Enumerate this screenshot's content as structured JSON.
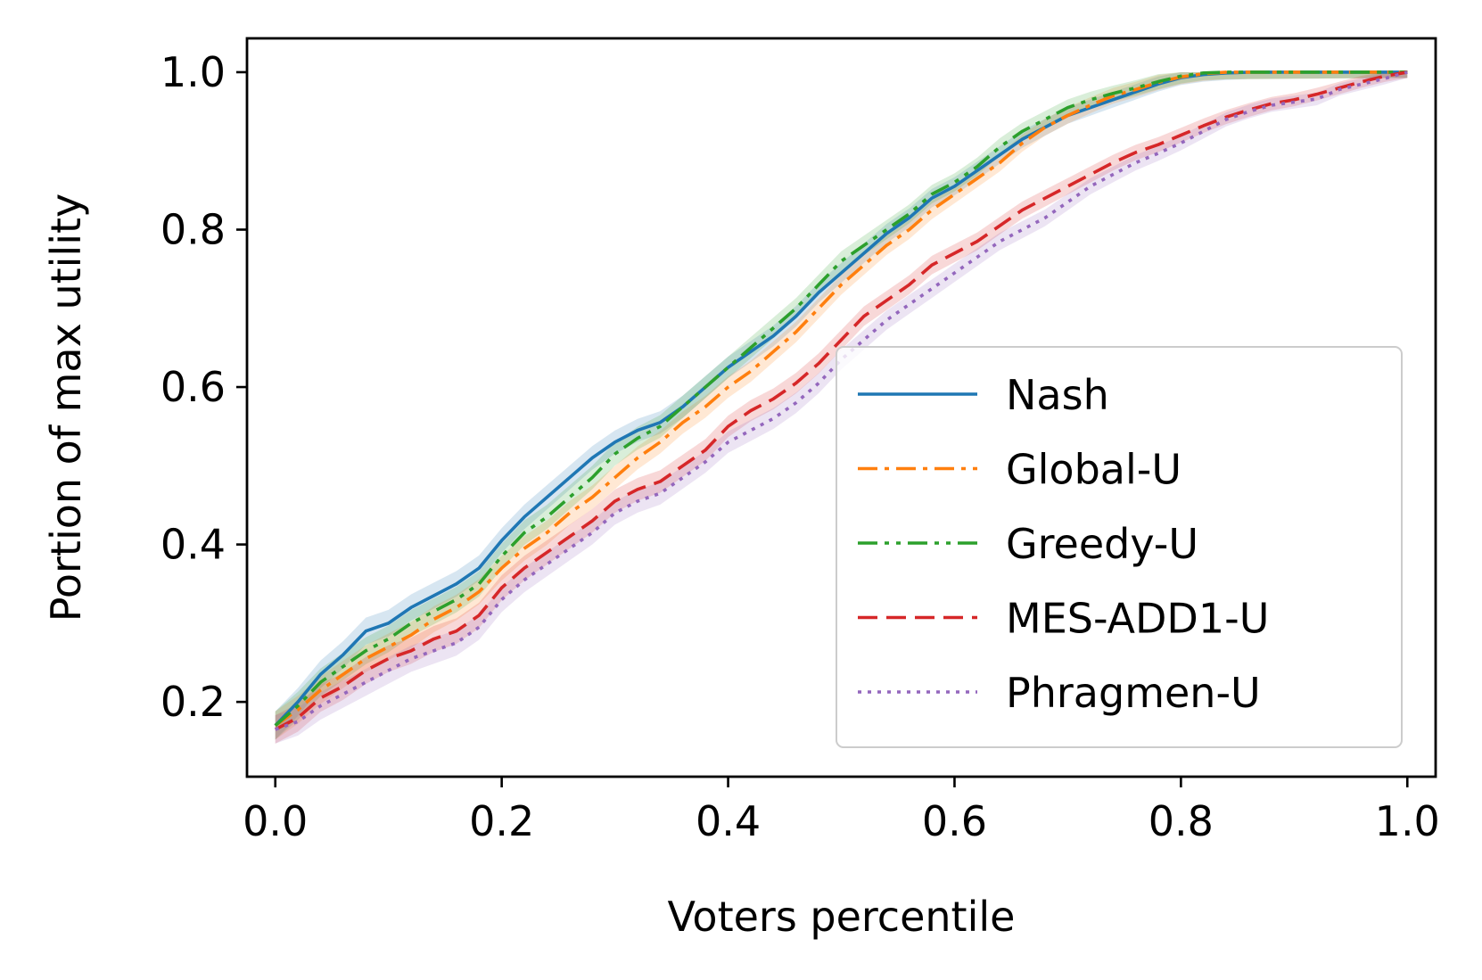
{
  "chart_data": {
    "type": "line",
    "title": "",
    "xlabel": "Voters percentile",
    "ylabel": "Portion of max utility",
    "xlim": [
      -0.025,
      1.025
    ],
    "ylim": [
      0.105,
      1.043
    ],
    "xticks": [
      0.0,
      0.2,
      0.4,
      0.6,
      0.8,
      1.0
    ],
    "yticks": [
      0.2,
      0.4,
      0.6,
      0.8,
      1.0
    ],
    "xtick_labels": [
      "0.0",
      "0.2",
      "0.4",
      "0.6",
      "0.8",
      "1.0"
    ],
    "ytick_labels": [
      "0.2",
      "0.4",
      "0.6",
      "0.8",
      "1.0"
    ],
    "grid": false,
    "legend_position": "center-right",
    "series": [
      {
        "name": "Nash",
        "color": "#1f77b4",
        "dash": "solid",
        "x": [
          0.0,
          0.02,
          0.04,
          0.06,
          0.08,
          0.1,
          0.12,
          0.14,
          0.16,
          0.18,
          0.2,
          0.22,
          0.24,
          0.26,
          0.28,
          0.3,
          0.32,
          0.34,
          0.36,
          0.38,
          0.4,
          0.42,
          0.44,
          0.46,
          0.48,
          0.5,
          0.52,
          0.54,
          0.56,
          0.58,
          0.6,
          0.62,
          0.64,
          0.66,
          0.68,
          0.7,
          0.72,
          0.74,
          0.76,
          0.78,
          0.8,
          0.82,
          0.84,
          0.86,
          0.88,
          0.9,
          0.92,
          0.94,
          0.96,
          0.98,
          1.0
        ],
        "y": [
          0.17,
          0.2,
          0.235,
          0.26,
          0.29,
          0.3,
          0.32,
          0.335,
          0.35,
          0.37,
          0.405,
          0.435,
          0.46,
          0.485,
          0.51,
          0.53,
          0.545,
          0.555,
          0.575,
          0.6,
          0.625,
          0.645,
          0.665,
          0.69,
          0.72,
          0.745,
          0.77,
          0.795,
          0.815,
          0.84,
          0.855,
          0.875,
          0.895,
          0.915,
          0.93,
          0.945,
          0.955,
          0.965,
          0.975,
          0.985,
          0.993,
          0.997,
          0.999,
          1.0,
          1.0,
          1.0,
          1.0,
          1.0,
          1.0,
          1.0,
          1.0
        ]
      },
      {
        "name": "Global-U",
        "color": "#ff7f0e",
        "dash": "dashdot",
        "x": [
          0.0,
          0.02,
          0.04,
          0.06,
          0.08,
          0.1,
          0.12,
          0.14,
          0.16,
          0.18,
          0.2,
          0.22,
          0.24,
          0.26,
          0.28,
          0.3,
          0.32,
          0.34,
          0.36,
          0.38,
          0.4,
          0.42,
          0.44,
          0.46,
          0.48,
          0.5,
          0.52,
          0.54,
          0.56,
          0.58,
          0.6,
          0.62,
          0.64,
          0.66,
          0.68,
          0.7,
          0.72,
          0.74,
          0.76,
          0.78,
          0.8,
          0.82,
          0.84,
          0.86,
          0.88,
          0.9,
          0.92,
          0.94,
          0.96,
          0.98,
          1.0
        ],
        "y": [
          0.17,
          0.19,
          0.215,
          0.235,
          0.255,
          0.27,
          0.285,
          0.305,
          0.32,
          0.34,
          0.37,
          0.395,
          0.415,
          0.44,
          0.46,
          0.485,
          0.51,
          0.53,
          0.555,
          0.575,
          0.6,
          0.62,
          0.645,
          0.67,
          0.7,
          0.73,
          0.755,
          0.78,
          0.8,
          0.825,
          0.845,
          0.865,
          0.885,
          0.91,
          0.93,
          0.945,
          0.958,
          0.97,
          0.978,
          0.987,
          0.994,
          0.998,
          1.0,
          1.0,
          1.0,
          1.0,
          1.0,
          1.0,
          1.0,
          1.0,
          1.0
        ]
      },
      {
        "name": "Greedy-U",
        "color": "#2ca02c",
        "dash": "dashdotdot",
        "x": [
          0.0,
          0.02,
          0.04,
          0.06,
          0.08,
          0.1,
          0.12,
          0.14,
          0.16,
          0.18,
          0.2,
          0.22,
          0.24,
          0.26,
          0.28,
          0.3,
          0.32,
          0.34,
          0.36,
          0.38,
          0.4,
          0.42,
          0.44,
          0.46,
          0.48,
          0.5,
          0.52,
          0.54,
          0.56,
          0.58,
          0.6,
          0.62,
          0.64,
          0.66,
          0.68,
          0.7,
          0.72,
          0.74,
          0.76,
          0.78,
          0.8,
          0.82,
          0.84,
          0.86,
          0.88,
          0.9,
          0.92,
          0.94,
          0.96,
          0.98,
          1.0
        ],
        "y": [
          0.17,
          0.195,
          0.225,
          0.245,
          0.265,
          0.28,
          0.3,
          0.315,
          0.33,
          0.35,
          0.385,
          0.415,
          0.435,
          0.46,
          0.485,
          0.515,
          0.535,
          0.55,
          0.575,
          0.6,
          0.625,
          0.65,
          0.675,
          0.7,
          0.73,
          0.76,
          0.78,
          0.8,
          0.82,
          0.845,
          0.86,
          0.88,
          0.905,
          0.925,
          0.94,
          0.955,
          0.965,
          0.973,
          0.98,
          0.988,
          0.995,
          0.999,
          1.0,
          1.0,
          1.0,
          1.0,
          1.0,
          1.0,
          1.0,
          1.0,
          1.0
        ]
      },
      {
        "name": "MES-ADD1-U",
        "color": "#d62728",
        "dash": "dashed",
        "x": [
          0.0,
          0.02,
          0.04,
          0.06,
          0.08,
          0.1,
          0.12,
          0.14,
          0.16,
          0.18,
          0.2,
          0.22,
          0.24,
          0.26,
          0.28,
          0.3,
          0.32,
          0.34,
          0.36,
          0.38,
          0.4,
          0.42,
          0.44,
          0.46,
          0.48,
          0.5,
          0.52,
          0.54,
          0.56,
          0.58,
          0.6,
          0.62,
          0.64,
          0.66,
          0.68,
          0.7,
          0.72,
          0.74,
          0.76,
          0.78,
          0.8,
          0.82,
          0.84,
          0.86,
          0.88,
          0.9,
          0.92,
          0.94,
          0.96,
          0.98,
          1.0
        ],
        "y": [
          0.165,
          0.18,
          0.205,
          0.22,
          0.24,
          0.255,
          0.265,
          0.28,
          0.29,
          0.31,
          0.345,
          0.37,
          0.39,
          0.41,
          0.43,
          0.455,
          0.47,
          0.48,
          0.5,
          0.52,
          0.55,
          0.57,
          0.585,
          0.605,
          0.63,
          0.66,
          0.69,
          0.71,
          0.73,
          0.755,
          0.77,
          0.785,
          0.805,
          0.825,
          0.84,
          0.855,
          0.87,
          0.885,
          0.898,
          0.908,
          0.92,
          0.932,
          0.943,
          0.952,
          0.96,
          0.965,
          0.972,
          0.98,
          0.988,
          0.995,
          1.0
        ]
      },
      {
        "name": "Phragmen-U",
        "color": "#9467bd",
        "dash": "dotted",
        "x": [
          0.0,
          0.02,
          0.04,
          0.06,
          0.08,
          0.1,
          0.12,
          0.14,
          0.16,
          0.18,
          0.2,
          0.22,
          0.24,
          0.26,
          0.28,
          0.3,
          0.32,
          0.34,
          0.36,
          0.38,
          0.4,
          0.42,
          0.44,
          0.46,
          0.48,
          0.5,
          0.52,
          0.54,
          0.56,
          0.58,
          0.6,
          0.62,
          0.64,
          0.66,
          0.68,
          0.7,
          0.72,
          0.74,
          0.76,
          0.78,
          0.8,
          0.82,
          0.84,
          0.86,
          0.88,
          0.9,
          0.92,
          0.94,
          0.96,
          0.98,
          1.0
        ],
        "y": [
          0.165,
          0.175,
          0.195,
          0.21,
          0.225,
          0.24,
          0.255,
          0.265,
          0.275,
          0.295,
          0.33,
          0.355,
          0.375,
          0.395,
          0.415,
          0.44,
          0.455,
          0.465,
          0.485,
          0.505,
          0.53,
          0.545,
          0.56,
          0.58,
          0.605,
          0.635,
          0.66,
          0.685,
          0.705,
          0.725,
          0.745,
          0.765,
          0.785,
          0.8,
          0.815,
          0.835,
          0.855,
          0.87,
          0.885,
          0.897,
          0.91,
          0.925,
          0.94,
          0.95,
          0.958,
          0.962,
          0.966,
          0.978,
          0.985,
          0.992,
          1.0
        ]
      }
    ]
  }
}
